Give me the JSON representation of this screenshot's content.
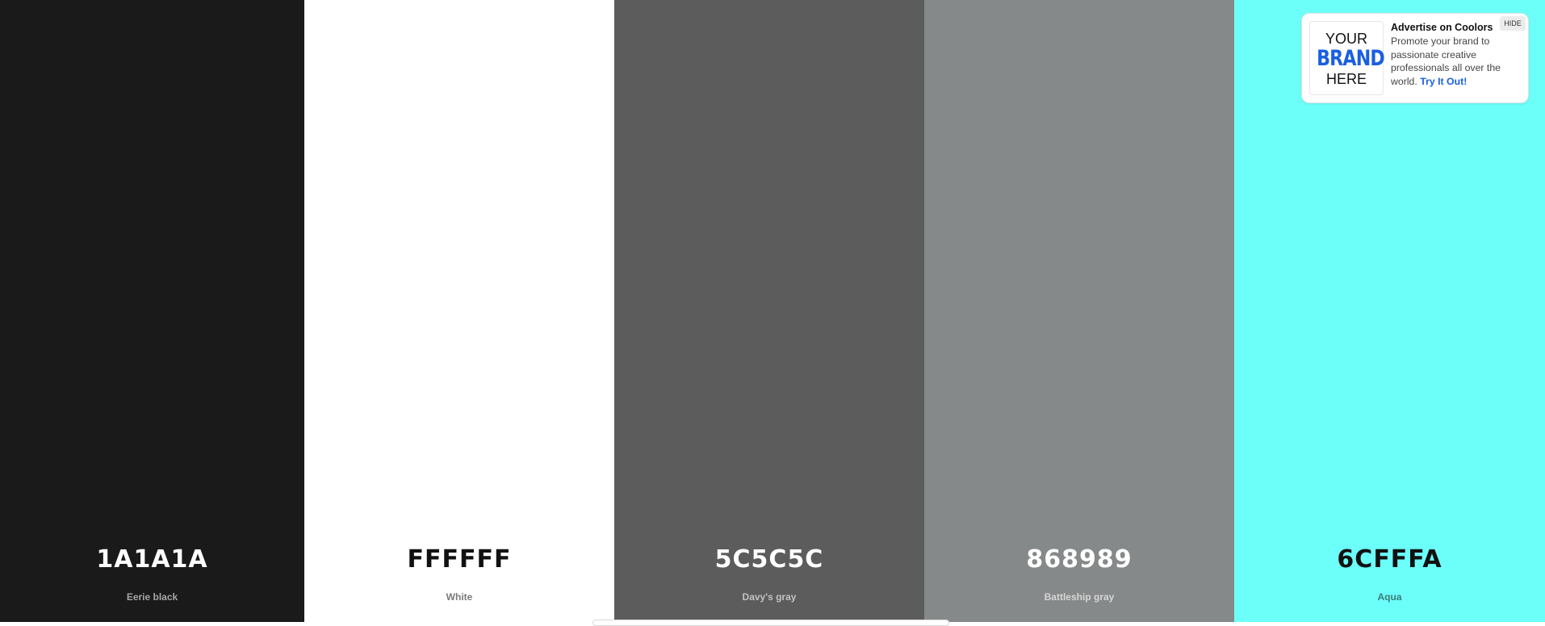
{
  "palette": {
    "colors": [
      {
        "hex": "1A1A1A",
        "name": "Eerie black",
        "bg": "#1A1A1A",
        "hex_color": "#FFFFFF",
        "name_color": "#A6A6A6"
      },
      {
        "hex": "FFFFFF",
        "name": "White",
        "bg": "#FFFFFF",
        "hex_color": "#111111",
        "name_color": "#7A7A7A"
      },
      {
        "hex": "5C5C5C",
        "name": "Davy's gray",
        "bg": "#5C5C5C",
        "hex_color": "#FFFFFF",
        "name_color": "#C2C2C2"
      },
      {
        "hex": "868989",
        "name": "Battleship gray",
        "bg": "#868989",
        "hex_color": "#FFFFFF",
        "name_color": "#D6D6D6"
      },
      {
        "hex": "6CFFFA",
        "name": "Aqua",
        "bg": "#6CFFFA",
        "hex_color": "#111111",
        "name_color": "#3B7A78"
      }
    ]
  },
  "ad": {
    "hide_label": "HIDE",
    "brand_line1": "YOUR",
    "brand_line2": "BRAND",
    "brand_line3": "HERE",
    "title": "Advertise on Coolors",
    "body": "Promote your brand to passionate creative professionals all over the world.",
    "link": "Try It Out!"
  }
}
